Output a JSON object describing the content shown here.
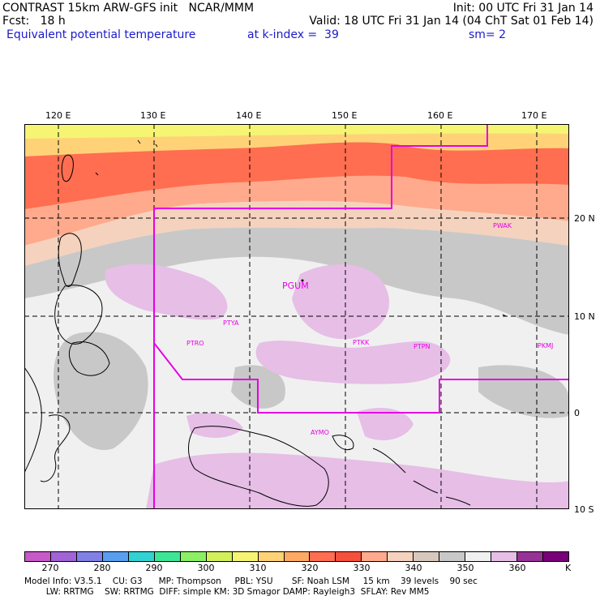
{
  "header": {
    "line1_left": "CONTRAST 15km ARW-GFS init   NCAR/MMM",
    "line1_right": "Init: 00 UTC Fri 31 Jan 14",
    "line2_left": "Fcst:   18 h",
    "line2_right": "Valid: 18 UTC Fri 31 Jan 14 (04 ChT Sat 01 Feb 14)",
    "field": "Equivalent potential temperature",
    "level": "at k-index =  39",
    "smoothing": "sm= 2"
  },
  "axes": {
    "lon_labels": [
      "120 E",
      "130 E",
      "140 E",
      "150 E",
      "160 E",
      "170 E"
    ],
    "lat_labels": [
      "20 N",
      "10 N",
      "0",
      "10 S"
    ]
  },
  "stations": [
    "PGUM",
    "PTYA",
    "PTRO",
    "PTKK",
    "PTPN",
    "PKMJ",
    "PWAK",
    "AYMO"
  ],
  "colorbar": {
    "labels": [
      "270",
      "280",
      "290",
      "300",
      "310",
      "320",
      "330",
      "340",
      "350",
      "360"
    ],
    "unit": "K",
    "colors": [
      "#c85ac8",
      "#a064d7",
      "#8080e6",
      "#5a9ef0",
      "#32d2d2",
      "#3ce696",
      "#8cf064",
      "#d2f05a",
      "#f5f573",
      "#ffd278",
      "#ffaa64",
      "#ff6e50",
      "#f5503c",
      "#ffaa8c",
      "#f5d2be",
      "#d7c8be",
      "#c8c8c8",
      "#f0f0f0",
      "#e6bee6",
      "#963296",
      "#780078"
    ]
  },
  "footer": {
    "line1": "Model Info: V3.5.1    CU: G3      MP: Thompson     PBL: YSU       SF: Noah LSM     15 km    39 levels    90 sec",
    "line2": "        LW: RRTMG    SW: RRTMG  DIFF: simple KM: 3D Smagor DAMP: Rayleigh3  SFLAY: Rev MM5"
  }
}
